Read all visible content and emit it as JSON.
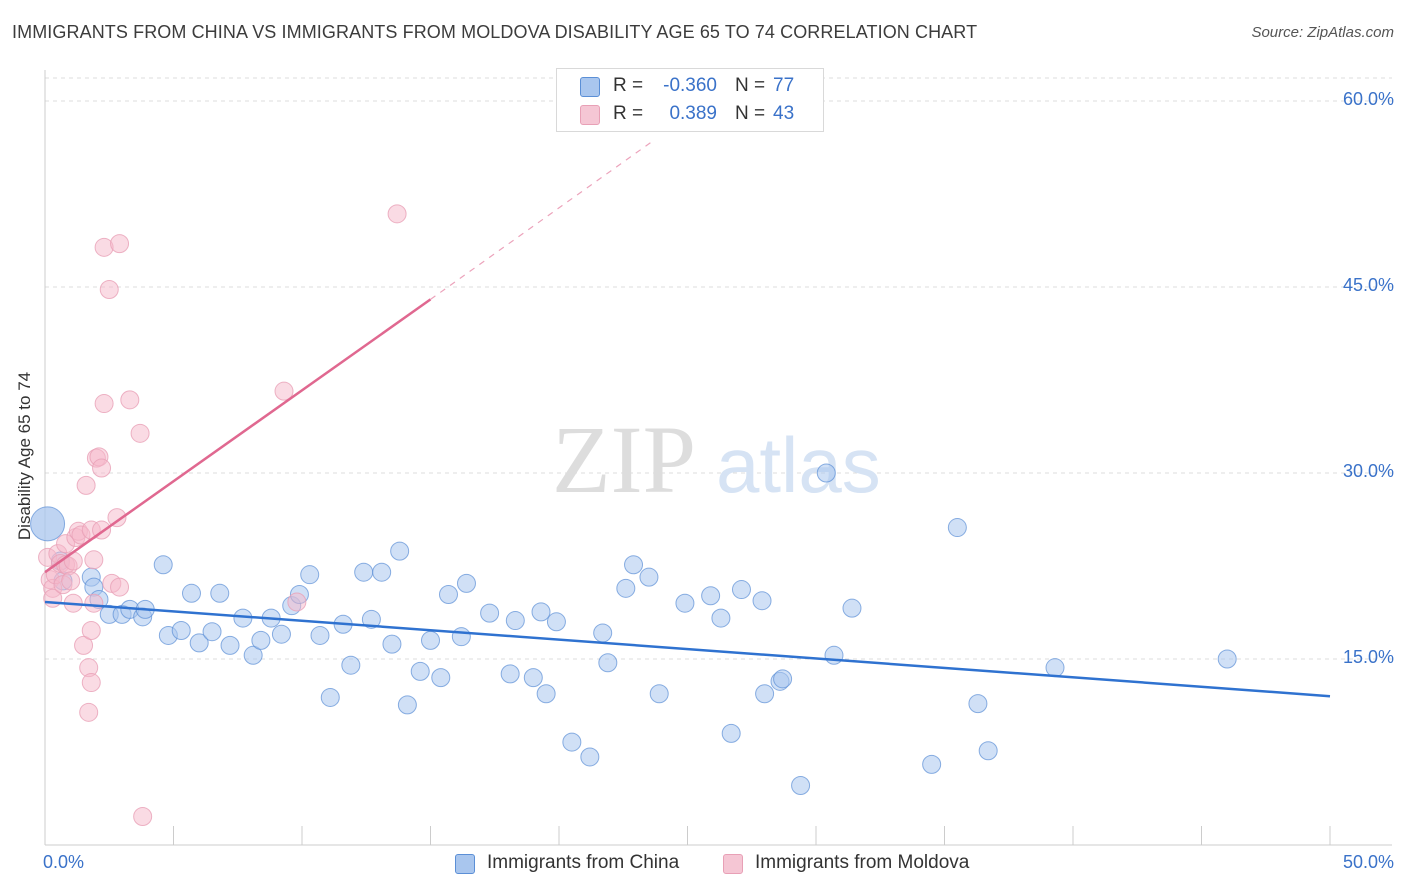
{
  "header": {
    "title": "IMMIGRANTS FROM CHINA VS IMMIGRANTS FROM MOLDOVA DISABILITY AGE 65 TO 74 CORRELATION CHART",
    "source": "Source: ZipAtlas.com"
  },
  "watermark": {
    "zip": "ZIP",
    "atlas": "atlas"
  },
  "legend": {
    "rows": [
      {
        "r_label": "R =",
        "r_value": "-0.360",
        "n_label": "N =",
        "n_value": "77",
        "color": "#a9c6ee"
      },
      {
        "r_label": "R =",
        "r_value": "0.389",
        "n_label": "N =",
        "n_value": "43",
        "color": "#f5b8ca"
      }
    ]
  },
  "bottom_legend": [
    {
      "label": "Immigrants from China",
      "color": "#a9c6ee"
    },
    {
      "label": "Immigrants from Moldova",
      "color": "#f5b8ca"
    }
  ],
  "chart_data": {
    "type": "scatter",
    "title": "IMMIGRANTS FROM CHINA VS IMMIGRANTS FROM MOLDOVA DISABILITY AGE 65 TO 74 CORRELATION CHART",
    "xlabel": "",
    "ylabel": "Disability Age 65 to 74",
    "xlim": [
      0,
      50
    ],
    "ylim": [
      0,
      62.5
    ],
    "x_tick_labels": [
      "0.0%",
      "50.0%"
    ],
    "y_ticks": [
      15,
      30,
      45,
      60
    ],
    "y_tick_labels": [
      "15.0%",
      "30.0%",
      "45.0%",
      "60.0%"
    ],
    "grid": true,
    "legend_position": "top-center",
    "series": [
      {
        "name": "Immigrants from China",
        "color": "#5b8fd6",
        "fill": "#a9c6ee",
        "r": -0.36,
        "n": 77,
        "trend": {
          "x": [
            0,
            50
          ],
          "y": [
            19.6,
            12.0
          ]
        },
        "points": [
          [
            0.1,
            25.9
          ],
          [
            0.6,
            22.9
          ],
          [
            0.7,
            21.3
          ],
          [
            1.8,
            21.6
          ],
          [
            1.9,
            20.8
          ],
          [
            2.1,
            19.8
          ],
          [
            2.5,
            18.6
          ],
          [
            3.0,
            18.6
          ],
          [
            3.3,
            19.0
          ],
          [
            3.8,
            18.4
          ],
          [
            3.9,
            19.0
          ],
          [
            4.6,
            22.6
          ],
          [
            4.8,
            16.9
          ],
          [
            5.3,
            17.3
          ],
          [
            5.7,
            20.3
          ],
          [
            6.0,
            16.3
          ],
          [
            6.5,
            17.2
          ],
          [
            6.8,
            20.3
          ],
          [
            7.2,
            16.1
          ],
          [
            7.7,
            18.3
          ],
          [
            8.1,
            15.3
          ],
          [
            8.4,
            16.5
          ],
          [
            8.8,
            18.3
          ],
          [
            9.2,
            17.0
          ],
          [
            9.6,
            19.3
          ],
          [
            9.9,
            20.2
          ],
          [
            10.3,
            21.8
          ],
          [
            10.7,
            16.9
          ],
          [
            11.1,
            11.9
          ],
          [
            11.6,
            17.8
          ],
          [
            11.9,
            14.5
          ],
          [
            12.4,
            22.0
          ],
          [
            12.7,
            18.2
          ],
          [
            13.1,
            22.0
          ],
          [
            13.5,
            16.2
          ],
          [
            13.8,
            23.7
          ],
          [
            14.1,
            11.3
          ],
          [
            14.6,
            14.0
          ],
          [
            15.0,
            16.5
          ],
          [
            15.4,
            13.5
          ],
          [
            15.7,
            20.2
          ],
          [
            16.2,
            16.8
          ],
          [
            16.4,
            21.1
          ],
          [
            17.3,
            18.7
          ],
          [
            18.1,
            13.8
          ],
          [
            18.3,
            18.1
          ],
          [
            19.0,
            13.5
          ],
          [
            19.3,
            18.8
          ],
          [
            19.5,
            12.2
          ],
          [
            19.9,
            18.0
          ],
          [
            20.5,
            8.3
          ],
          [
            21.2,
            7.1
          ],
          [
            21.7,
            17.1
          ],
          [
            21.9,
            14.7
          ],
          [
            22.6,
            20.7
          ],
          [
            22.9,
            22.6
          ],
          [
            23.5,
            21.6
          ],
          [
            23.9,
            12.2
          ],
          [
            24.9,
            19.5
          ],
          [
            25.9,
            20.1
          ],
          [
            26.3,
            18.3
          ],
          [
            26.7,
            9.0
          ],
          [
            27.1,
            20.6
          ],
          [
            27.9,
            19.7
          ],
          [
            28.0,
            12.2
          ],
          [
            28.6,
            13.2
          ],
          [
            28.7,
            13.4
          ],
          [
            29.4,
            4.8
          ],
          [
            30.4,
            30.0
          ],
          [
            30.7,
            15.3
          ],
          [
            31.4,
            19.1
          ],
          [
            34.5,
            6.5
          ],
          [
            35.5,
            25.6
          ],
          [
            36.3,
            11.4
          ],
          [
            36.7,
            7.6
          ],
          [
            39.3,
            14.3
          ],
          [
            46.0,
            15.0
          ]
        ]
      },
      {
        "name": "Immigrants from Moldova",
        "color": "#e06890",
        "fill": "#f5b8ca",
        "r": 0.389,
        "n": 43,
        "trend": {
          "x": [
            0,
            15
          ],
          "y": [
            22.0,
            44.0
          ]
        },
        "trend_extension": {
          "x": [
            15,
            23.6
          ],
          "y": [
            44.0,
            56.7
          ]
        },
        "points": [
          [
            0.1,
            23.2
          ],
          [
            0.2,
            21.4
          ],
          [
            0.3,
            20.7
          ],
          [
            0.3,
            19.9
          ],
          [
            0.4,
            21.8
          ],
          [
            0.5,
            23.5
          ],
          [
            0.6,
            22.7
          ],
          [
            0.7,
            21.0
          ],
          [
            0.8,
            22.6
          ],
          [
            0.8,
            24.3
          ],
          [
            0.9,
            22.5
          ],
          [
            1.0,
            21.3
          ],
          [
            1.1,
            19.5
          ],
          [
            1.1,
            22.9
          ],
          [
            1.2,
            24.8
          ],
          [
            1.3,
            25.3
          ],
          [
            1.4,
            25.0
          ],
          [
            1.5,
            16.1
          ],
          [
            1.6,
            29.0
          ],
          [
            1.7,
            14.3
          ],
          [
            1.8,
            25.4
          ],
          [
            1.9,
            19.5
          ],
          [
            1.9,
            23.0
          ],
          [
            2.0,
            31.2
          ],
          [
            1.7,
            10.7
          ],
          [
            1.8,
            17.3
          ],
          [
            1.8,
            13.1
          ],
          [
            2.1,
            31.3
          ],
          [
            2.2,
            30.4
          ],
          [
            2.2,
            25.4
          ],
          [
            2.3,
            35.6
          ],
          [
            2.3,
            48.2
          ],
          [
            2.5,
            44.8
          ],
          [
            2.6,
            21.1
          ],
          [
            2.8,
            26.4
          ],
          [
            2.9,
            20.8
          ],
          [
            2.9,
            48.5
          ],
          [
            3.3,
            35.9
          ],
          [
            3.7,
            33.2
          ],
          [
            3.8,
            2.3
          ],
          [
            9.3,
            36.6
          ],
          [
            9.8,
            19.6
          ],
          [
            13.7,
            50.9
          ]
        ]
      }
    ]
  }
}
